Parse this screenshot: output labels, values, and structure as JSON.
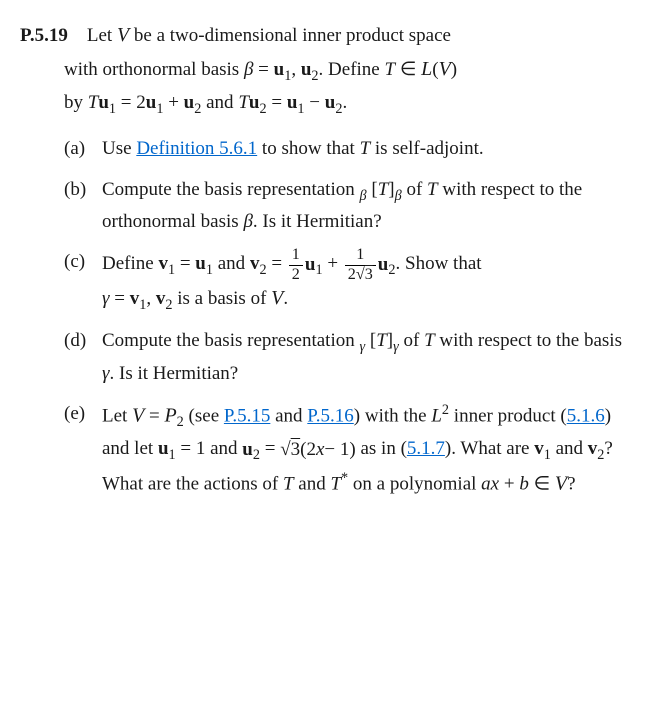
{
  "problem": {
    "label": "P.5.19",
    "intro_line1_prefix": "Let ",
    "V": "V",
    "intro_line1_mid": " be a two-dimensional inner product space",
    "intro_line2_prefix": "with orthonormal basis ",
    "beta": "β",
    "eq": " = ",
    "u1": "u",
    "sub1": "1",
    "comma_sp": ", ",
    "u2": "u",
    "sub2": "2",
    "intro_line2_mid": ". Define ",
    "T": "T",
    "in": " ∈ ",
    "L": "L",
    "paren_V": "(V)",
    "intro_line3_prefix": "by ",
    "Tu1": "T",
    "eq2": " = 2",
    "plus": " + ",
    "and": " and ",
    "minus": " − ",
    "period": "."
  },
  "parts": {
    "a": {
      "label": "(a)",
      "t1": "Use ",
      "link": "Definition 5.6.1",
      "t2": " to show that ",
      "t3": " is self-adjoint."
    },
    "b": {
      "label": "(b)",
      "t1": "Compute the basis representation ",
      "t2": " of ",
      "t3": " with respect to the orthonormal basis ",
      "t4": ". Is it Hermitian?"
    },
    "c": {
      "label": "(c)",
      "t1": "Define ",
      "v1": "v",
      "t2": " and ",
      "v2": "v",
      "t3": " Show that",
      "t4": " is a basis of ",
      "gamma": "γ",
      "t5": "."
    },
    "d": {
      "label": "(d)",
      "t1": "Compute the basis representation ",
      "t2": " of ",
      "t3": " with respect to the basis ",
      "t4": ". Is it Hermitian?"
    },
    "e": {
      "label": "(e)",
      "t1": "Let ",
      "P2": "P",
      "t2": " (see ",
      "link1": "P.5.15",
      "t3": " and ",
      "link2": "P.5.16",
      "t4": ") with the ",
      "L2": "L",
      "t5": " inner product (",
      "link3": "5.1.6",
      "t6": ") and let ",
      "t7": " = 1 and ",
      "t8": " as in (",
      "link4": "5.1.7",
      "t9": "). What are ",
      "t10": " and ",
      "t11": "? What are the actions of ",
      "t12": " and ",
      "Tstar": "T",
      "t13": " on a polynomial ",
      "ax": "ax",
      "plus": " + ",
      "b": "b",
      "t14": " ∈ ",
      "t15": "?"
    }
  },
  "math": {
    "frac_half_num": "1",
    "frac_half_den": "2",
    "frac2_num": "1",
    "frac2_den_pre": "2",
    "frac2_den_sqrt": "3",
    "sqrt3": "3",
    "expr_2x": "(2",
    "x": "x",
    "minus1": " − 1)"
  }
}
